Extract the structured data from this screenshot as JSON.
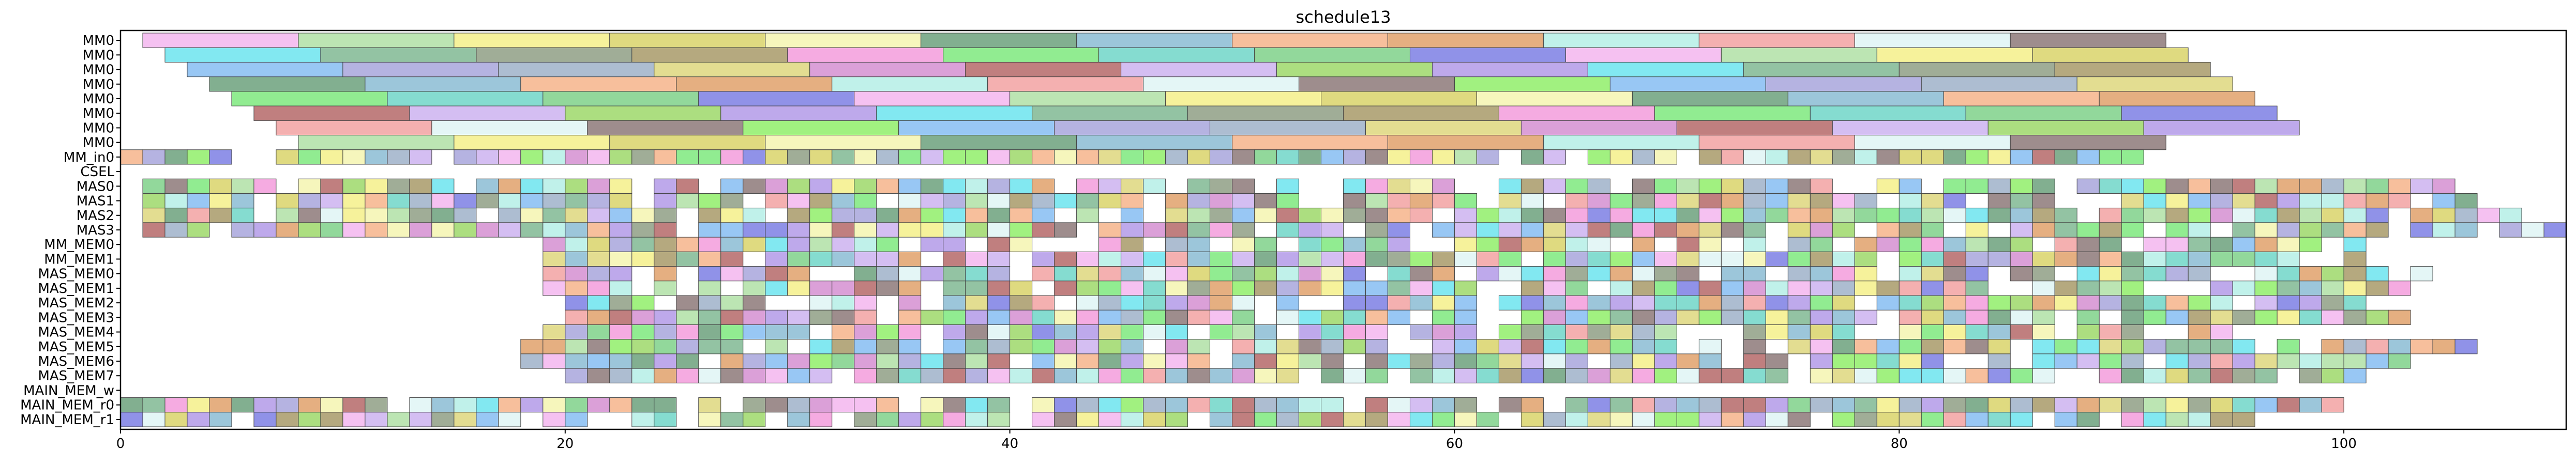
{
  "chart_data": {
    "type": "gantt",
    "title": "schedule13",
    "xlim": [
      0,
      110
    ],
    "x_ticks": [
      0,
      20,
      40,
      60,
      80,
      100
    ],
    "x_tick_labels": [
      "0",
      "20",
      "40",
      "60",
      "80",
      "100"
    ],
    "rows": [
      {
        "label": "MM0",
        "segments": [
          [
            1,
            8
          ],
          [
            8,
            15
          ],
          [
            15,
            22
          ],
          [
            22,
            29
          ],
          [
            29,
            36
          ],
          [
            36,
            43
          ],
          [
            43,
            50
          ],
          [
            50,
            57
          ],
          [
            57,
            64
          ],
          [
            64,
            71
          ],
          [
            71,
            78
          ],
          [
            78,
            85
          ],
          [
            85,
            92
          ]
        ]
      },
      {
        "label": "MM0",
        "segments": [
          [
            2,
            9
          ],
          [
            9,
            16
          ],
          [
            16,
            23
          ],
          [
            23,
            30
          ],
          [
            30,
            37
          ],
          [
            37,
            44
          ],
          [
            44,
            51
          ],
          [
            51,
            58
          ],
          [
            58,
            65
          ],
          [
            65,
            72
          ],
          [
            72,
            79
          ],
          [
            79,
            86
          ],
          [
            86,
            93
          ]
        ]
      },
      {
        "label": "MM0",
        "segments": [
          [
            3,
            10
          ],
          [
            10,
            17
          ],
          [
            17,
            24
          ],
          [
            24,
            31
          ],
          [
            31,
            38
          ],
          [
            38,
            45
          ],
          [
            45,
            52
          ],
          [
            52,
            59
          ],
          [
            59,
            66
          ],
          [
            66,
            73
          ],
          [
            73,
            80
          ],
          [
            80,
            87
          ],
          [
            87,
            94
          ]
        ]
      },
      {
        "label": "MM0",
        "segments": [
          [
            4,
            11
          ],
          [
            11,
            18
          ],
          [
            18,
            25
          ],
          [
            25,
            32
          ],
          [
            32,
            39
          ],
          [
            39,
            46
          ],
          [
            46,
            53
          ],
          [
            53,
            60
          ],
          [
            60,
            67
          ],
          [
            67,
            74
          ],
          [
            74,
            81
          ],
          [
            81,
            88
          ],
          [
            88,
            95
          ]
        ]
      },
      {
        "label": "MM0",
        "segments": [
          [
            5,
            12
          ],
          [
            12,
            19
          ],
          [
            19,
            26
          ],
          [
            26,
            33
          ],
          [
            33,
            40
          ],
          [
            40,
            47
          ],
          [
            47,
            54
          ],
          [
            54,
            61
          ],
          [
            61,
            68
          ],
          [
            68,
            75
          ],
          [
            75,
            82
          ],
          [
            82,
            89
          ],
          [
            89,
            96
          ]
        ]
      },
      {
        "label": "MM0",
        "segments": [
          [
            6,
            13
          ],
          [
            13,
            20
          ],
          [
            20,
            27
          ],
          [
            27,
            34
          ],
          [
            34,
            41
          ],
          [
            41,
            48
          ],
          [
            48,
            55
          ],
          [
            55,
            62
          ],
          [
            62,
            69
          ],
          [
            69,
            76
          ],
          [
            76,
            83
          ],
          [
            83,
            90
          ],
          [
            90,
            97
          ]
        ]
      },
      {
        "label": "MM0",
        "segments": [
          [
            7,
            14
          ],
          [
            14,
            21
          ],
          [
            21,
            28
          ],
          [
            28,
            35
          ],
          [
            35,
            42
          ],
          [
            42,
            49
          ],
          [
            49,
            56
          ],
          [
            56,
            63
          ],
          [
            63,
            70
          ],
          [
            70,
            77
          ],
          [
            77,
            84
          ],
          [
            84,
            91
          ],
          [
            91,
            98
          ]
        ]
      },
      {
        "label": "MM0",
        "segments": [
          [
            8,
            15
          ],
          [
            15,
            22
          ],
          [
            22,
            29
          ],
          [
            29,
            36
          ],
          [
            36,
            43
          ],
          [
            43,
            50
          ],
          [
            50,
            57
          ],
          [
            57,
            64
          ],
          [
            64,
            71
          ],
          [
            71,
            78
          ],
          [
            78,
            85
          ],
          [
            85,
            92
          ]
        ]
      },
      {
        "label": "MM_in0",
        "segments": [
          [
            0,
            91
          ]
        ]
      },
      {
        "label": "CSEL",
        "segments": []
      },
      {
        "label": "MAS0",
        "segments": [
          [
            1,
            105
          ]
        ]
      },
      {
        "label": "MAS1",
        "segments": [
          [
            1,
            106
          ]
        ]
      },
      {
        "label": "MAS2",
        "segments": [
          [
            1,
            108
          ]
        ]
      },
      {
        "label": "MAS3",
        "segments": [
          [
            1,
            110
          ]
        ]
      },
      {
        "label": "MM_MEM0",
        "segments": [
          [
            19,
            102
          ]
        ]
      },
      {
        "label": "MM_MEM1",
        "segments": [
          [
            19,
            103
          ]
        ]
      },
      {
        "label": "MAS_MEM0",
        "segments": [
          [
            19,
            104
          ]
        ]
      },
      {
        "label": "MAS_MEM1",
        "segments": [
          [
            19,
            103
          ]
        ]
      },
      {
        "label": "MAS_MEM2",
        "segments": [
          [
            20,
            101
          ]
        ]
      },
      {
        "label": "MAS_MEM3",
        "segments": [
          [
            20,
            103
          ]
        ]
      },
      {
        "label": "MAS_MEM4",
        "segments": [
          [
            19,
            96
          ]
        ]
      },
      {
        "label": "MAS_MEM5",
        "segments": [
          [
            18,
            107
          ]
        ]
      },
      {
        "label": "MAS_MEM6",
        "segments": [
          [
            18,
            103
          ]
        ]
      },
      {
        "label": "MAS_MEM7",
        "segments": [
          [
            20,
            101
          ]
        ]
      },
      {
        "label": "MAIN_MEM_w",
        "segments": []
      },
      {
        "label": "MAIN_MEM_r0",
        "segments": [
          [
            0,
            102
          ]
        ]
      },
      {
        "label": "MAIN_MEM_r1",
        "segments": [
          [
            0,
            96
          ]
        ]
      }
    ],
    "grid": false,
    "legend": "none"
  }
}
